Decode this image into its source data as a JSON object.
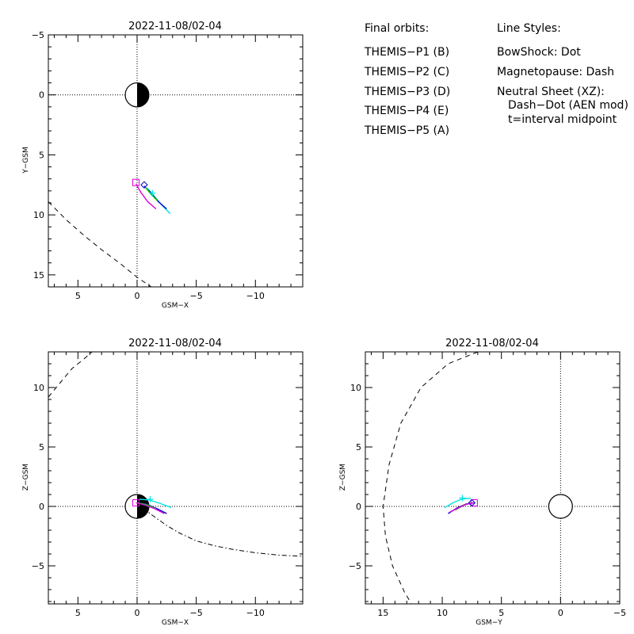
{
  "legend": {
    "orbits_heading": "Final orbits:",
    "orbits": [
      {
        "label": "THEMIS−P1 (B)",
        "color": "#ff0000"
      },
      {
        "label": "THEMIS−P2 (C)",
        "color": "#00dd00"
      },
      {
        "label": "THEMIS−P3 (D)",
        "color": "#00e5e5"
      },
      {
        "label": "THEMIS−P4 (E)",
        "color": "#0000cc"
      },
      {
        "label": "THEMIS−P5 (A)",
        "color": "#dd00dd"
      }
    ],
    "styles_heading": "Line Styles:",
    "styles": [
      "BowShock: Dot",
      "Magnetopause: Dash",
      "Neutral Sheet (XZ):",
      "Dash−Dot (AEN mod)",
      "t=interval midpoint"
    ]
  },
  "chart_data": [
    {
      "id": "xy",
      "type": "line",
      "title": "2022-11-08/02-04",
      "xlabel": "GSM−X",
      "ylabel": "Y−GSM",
      "xlim": [
        7.5,
        -14
      ],
      "ylim": [
        -5,
        16
      ],
      "y_inverted": true,
      "xticks": [
        5,
        0,
        -5,
        -10
      ],
      "xtick_labels": [
        "5",
        "0",
        "−5",
        "−10"
      ],
      "yticks": [
        -5,
        0,
        5,
        10,
        15
      ],
      "ytick_labels": [
        "−5",
        "0",
        "5",
        "10",
        "15"
      ],
      "earth": {
        "x": 0,
        "y": 0,
        "r": 1,
        "night_side": "negative-x"
      },
      "boundaries": [
        {
          "name": "Magnetopause",
          "style": "dash",
          "points": [
            [
              7.5,
              8.9
            ],
            [
              6,
              10.4
            ],
            [
              4.5,
              11.7
            ],
            [
              3,
              12.9
            ],
            [
              1.5,
              14
            ],
            [
              0,
              15.2
            ],
            [
              -1.2,
              16
            ]
          ]
        }
      ],
      "series": [
        {
          "name": "THEMIS−P3 (D)",
          "color": "#00e5e5",
          "points": [
            [
              -0.9,
              7.8
            ],
            [
              -1.5,
              8.5
            ],
            [
              -2.1,
              9.2
            ],
            [
              -2.8,
              9.9
            ]
          ]
        },
        {
          "name": "THEMIS−P4 (E)",
          "color": "#0000cc",
          "points": [
            [
              -0.6,
              7.6
            ],
            [
              -1.2,
              8.2
            ],
            [
              -1.8,
              8.9
            ],
            [
              -2.5,
              9.5
            ]
          ]
        },
        {
          "name": "THEMIS−P1 (B)",
          "color": "#ff0000",
          "points": [
            [
              -0.7,
              7.7
            ],
            [
              -1.2,
              8.3
            ],
            [
              -1.7,
              8.8
            ]
          ]
        },
        {
          "name": "THEMIS−P2 (C)",
          "color": "#00dd00",
          "points": [
            [
              -0.7,
              7.7
            ],
            [
              -1.2,
              8.3
            ],
            [
              -1.7,
              8.8
            ]
          ]
        },
        {
          "name": "THEMIS−P5 (A)",
          "color": "#dd00dd",
          "points": [
            [
              0.1,
              7.4
            ],
            [
              -0.3,
              8.1
            ],
            [
              -0.9,
              8.9
            ],
            [
              -1.6,
              9.5
            ]
          ]
        }
      ],
      "markers": [
        {
          "shape": "square",
          "color": "#dd00dd",
          "x": 0.1,
          "y": 7.3
        },
        {
          "shape": "diamond",
          "color": "#0000cc",
          "x": -0.6,
          "y": 7.5
        },
        {
          "shape": "plus",
          "color": "#00e5e5",
          "x": -1.3,
          "y": 8.2
        }
      ]
    },
    {
      "id": "xz",
      "type": "line",
      "title": "2022-11-08/02-04",
      "xlabel": "GSM−X",
      "ylabel": "Z−GSM",
      "xlim": [
        7.5,
        -14
      ],
      "ylim": [
        -8.2,
        13
      ],
      "y_inverted": false,
      "xticks": [
        5,
        0,
        -5,
        -10
      ],
      "xtick_labels": [
        "5",
        "0",
        "−5",
        "−10"
      ],
      "yticks": [
        -5,
        0,
        5,
        10
      ],
      "ytick_labels": [
        "−5",
        "0",
        "5",
        "10"
      ],
      "earth": {
        "x": 0,
        "y": 0,
        "r": 1,
        "night_side": "negative-x"
      },
      "boundaries": [
        {
          "name": "Magnetopause",
          "style": "dash",
          "points": [
            [
              7.5,
              9.2
            ],
            [
              6.5,
              10.4
            ],
            [
              5.5,
              11.6
            ],
            [
              4.5,
              12.4
            ],
            [
              3.8,
              13
            ]
          ]
        },
        {
          "name": "Neutral Sheet",
          "style": "dashdot",
          "points": [
            [
              -0.5,
              -0.15
            ],
            [
              -1.5,
              -0.9
            ],
            [
              -2.5,
              -1.6
            ],
            [
              -3.5,
              -2.2
            ],
            [
              -5,
              -2.9
            ],
            [
              -6.5,
              -3.3
            ],
            [
              -8,
              -3.6
            ],
            [
              -10,
              -3.9
            ],
            [
              -12,
              -4.1
            ],
            [
              -14,
              -4.2
            ]
          ]
        }
      ],
      "series": [
        {
          "name": "THEMIS−P3 (D)",
          "color": "#00e5e5",
          "points": [
            [
              -0.2,
              0.6
            ],
            [
              -1,
              0.55
            ],
            [
              -1.8,
              0.3
            ],
            [
              -2.9,
              -0.1
            ]
          ]
        },
        {
          "name": "THEMIS−P4 (E)",
          "color": "#0000cc",
          "points": [
            [
              0,
              0.3
            ],
            [
              -0.8,
              0.2
            ],
            [
              -1.7,
              -0.2
            ],
            [
              -2.5,
              -0.6
            ]
          ]
        },
        {
          "name": "THEMIS−P1 (B)",
          "color": "#ff0000",
          "points": [
            [
              0,
              0.3
            ],
            [
              -0.8,
              0.15
            ],
            [
              -1.6,
              -0.2
            ]
          ]
        },
        {
          "name": "THEMIS−P2 (C)",
          "color": "#00dd00",
          "points": [
            [
              0,
              0.3
            ],
            [
              -0.8,
              0.15
            ],
            [
              -1.6,
              -0.2
            ]
          ]
        },
        {
          "name": "THEMIS−P5 (A)",
          "color": "#dd00dd",
          "points": [
            [
              0.1,
              0.3
            ],
            [
              -0.7,
              0.1
            ],
            [
              -1.5,
              -0.2
            ],
            [
              -2.3,
              -0.6
            ]
          ]
        }
      ],
      "markers": [
        {
          "shape": "square",
          "color": "#dd00dd",
          "x": 0.1,
          "y": 0.3
        },
        {
          "shape": "plus",
          "color": "#00e5e5",
          "x": -1.1,
          "y": 0.6
        }
      ]
    },
    {
      "id": "yz",
      "type": "line",
      "title": "2022-11-08/02-04",
      "xlabel": "GSM−Y",
      "ylabel": "Z−GSM",
      "xlim": [
        16.5,
        -5
      ],
      "ylim": [
        -8.2,
        13
      ],
      "y_inverted": false,
      "xticks": [
        15,
        10,
        5,
        0,
        -5
      ],
      "xtick_labels": [
        "15",
        "10",
        "5",
        "0",
        "−5"
      ],
      "yticks": [
        -5,
        0,
        5,
        10
      ],
      "ytick_labels": [
        "−5",
        "0",
        "5",
        "10"
      ],
      "earth": {
        "x": 0,
        "y": 0,
        "r": 1,
        "night_side": "none"
      },
      "boundaries": [
        {
          "name": "Magnetopause",
          "style": "dash",
          "points": [
            [
              7,
              13
            ],
            [
              9.5,
              12
            ],
            [
              11.8,
              10
            ],
            [
              13.5,
              7
            ],
            [
              14.5,
              3.5
            ],
            [
              15,
              0
            ],
            [
              14.8,
              -2.5
            ],
            [
              14.2,
              -5
            ],
            [
              13.2,
              -7.2
            ],
            [
              12.6,
              -8.2
            ]
          ]
        }
      ],
      "series": [
        {
          "name": "THEMIS−P3 (D)",
          "color": "#00e5e5",
          "points": [
            [
              9.8,
              -0.1
            ],
            [
              9.1,
              0.3
            ],
            [
              8.4,
              0.6
            ],
            [
              7.6,
              0.7
            ]
          ]
        },
        {
          "name": "THEMIS−P4 (E)",
          "color": "#0000cc",
          "points": [
            [
              9.5,
              -0.6
            ],
            [
              8.7,
              -0.1
            ],
            [
              8,
              0.2
            ],
            [
              7.4,
              0.3
            ]
          ]
        },
        {
          "name": "THEMIS−P1 (B)",
          "color": "#ff0000",
          "points": [
            [
              8.9,
              -0.3
            ],
            [
              8.2,
              0.1
            ],
            [
              7.5,
              0.3
            ]
          ]
        },
        {
          "name": "THEMIS−P2 (C)",
          "color": "#00dd00",
          "points": [
            [
              8.9,
              -0.3
            ],
            [
              8.2,
              0.1
            ],
            [
              7.5,
              0.3
            ]
          ]
        },
        {
          "name": "THEMIS−P5 (A)",
          "color": "#dd00dd",
          "points": [
            [
              9.4,
              -0.5
            ],
            [
              8.6,
              -0.1
            ],
            [
              7.9,
              0.2
            ],
            [
              7.3,
              0.3
            ]
          ]
        }
      ],
      "markers": [
        {
          "shape": "square",
          "color": "#dd00dd",
          "x": 7.3,
          "y": 0.3
        },
        {
          "shape": "diamond",
          "color": "#0000cc",
          "x": 7.5,
          "y": 0.3
        },
        {
          "shape": "plus",
          "color": "#00e5e5",
          "x": 8.3,
          "y": 0.7
        }
      ]
    }
  ]
}
